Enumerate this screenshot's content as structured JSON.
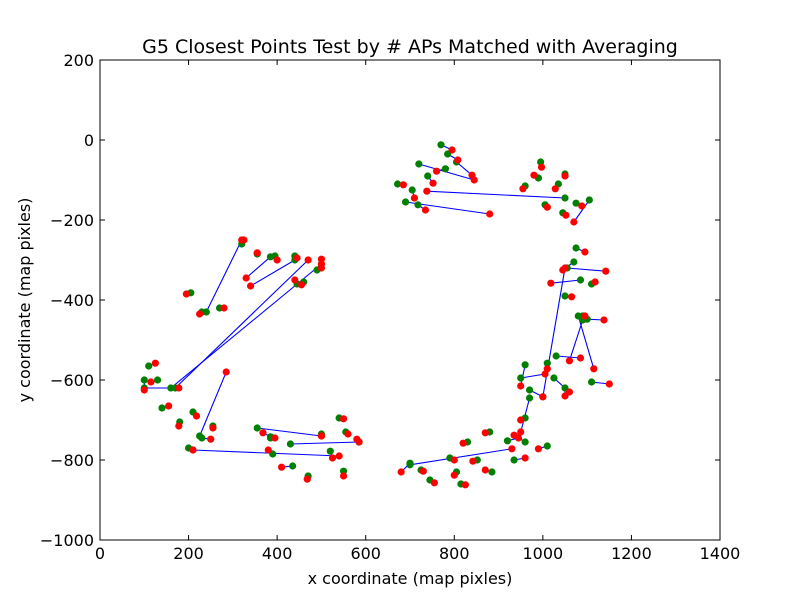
{
  "chart_data": {
    "type": "scatter",
    "title": "G5 Closest Points Test by # APs Matched with Averaging",
    "xlabel": "x coordinate (map pixles)",
    "ylabel": "y coordinate (map pixles)",
    "xlim": [
      0,
      1400
    ],
    "ylim": [
      -1000,
      200
    ],
    "xticks": [
      0,
      200,
      400,
      600,
      800,
      1000,
      1200,
      1400
    ],
    "yticks": [
      200,
      0,
      -200,
      -400,
      -600,
      -800,
      -1000
    ],
    "xtick_labels": [
      "0",
      "200",
      "400",
      "600",
      "800",
      "1000",
      "1200",
      "1400"
    ],
    "ytick_labels": [
      "200",
      "0",
      "−200",
      "−400",
      "−600",
      "−800",
      "−1000"
    ],
    "grid": false,
    "colors": {
      "actual": "#008000",
      "estimate": "#ff0000",
      "line": "#0000ff"
    },
    "pairs": [
      [
        770,
        -12,
        795,
        -25
      ],
      [
        785,
        -35,
        808,
        -50
      ],
      [
        740,
        -90,
        752,
        -108
      ],
      [
        780,
        -72,
        760,
        -78
      ],
      [
        720,
        -60,
        845,
        -100
      ],
      [
        705,
        -125,
        710,
        -145
      ],
      [
        718,
        -162,
        735,
        -175
      ],
      [
        672,
        -110,
        685,
        -112
      ],
      [
        805,
        -55,
        840,
        -88
      ],
      [
        995,
        -55,
        997,
        -68
      ],
      [
        990,
        -95,
        980,
        -88
      ],
      [
        1035,
        -110,
        1028,
        -122
      ],
      [
        1050,
        -85,
        1050,
        -90
      ],
      [
        960,
        -115,
        955,
        -122
      ],
      [
        1050,
        -145,
        738,
        -128
      ],
      [
        1005,
        -162,
        1010,
        -168
      ],
      [
        1045,
        -182,
        1052,
        -188
      ],
      [
        1075,
        -158,
        1088,
        -165
      ],
      [
        1105,
        -150,
        1070,
        -205
      ],
      [
        690,
        -155,
        880,
        -185
      ],
      [
        1075,
        -270,
        1095,
        -280
      ],
      [
        1070,
        -305,
        1045,
        -325
      ],
      [
        1055,
        -320,
        1142,
        -328
      ],
      [
        1050,
        -390,
        1065,
        -392
      ],
      [
        1110,
        -360,
        1118,
        -355
      ],
      [
        1085,
        -350,
        1018,
        -358
      ],
      [
        1090,
        -440,
        1095,
        -440
      ],
      [
        1100,
        -448,
        1138,
        -450
      ],
      [
        1090,
        -450,
        1060,
        -552
      ],
      [
        1080,
        -440,
        1115,
        -572
      ],
      [
        1030,
        -540,
        1085,
        -545
      ],
      [
        1010,
        -558,
        1010,
        -572
      ],
      [
        1025,
        -595,
        1060,
        -630
      ],
      [
        1050,
        -620,
        1050,
        -640
      ],
      [
        1110,
        -605,
        1150,
        -610
      ],
      [
        960,
        -562,
        950,
        -615
      ],
      [
        970,
        -625,
        1000,
        -642
      ],
      [
        1000,
        -642,
        1050,
        -320
      ],
      [
        950,
        -595,
        1005,
        -585
      ],
      [
        970,
        -645,
        950,
        -730
      ],
      [
        1010,
        -765,
        990,
        -772
      ],
      [
        960,
        -695,
        950,
        -700
      ],
      [
        960,
        -755,
        935,
        -738
      ],
      [
        935,
        -800,
        960,
        -795
      ],
      [
        920,
        -752,
        945,
        -745
      ],
      [
        880,
        -730,
        870,
        -732
      ],
      [
        852,
        -800,
        842,
        -803
      ],
      [
        830,
        -755,
        820,
        -758
      ],
      [
        885,
        -830,
        870,
        -825
      ],
      [
        790,
        -795,
        800,
        -800
      ],
      [
        805,
        -830,
        800,
        -838
      ],
      [
        815,
        -860,
        825,
        -862
      ],
      [
        745,
        -850,
        755,
        -857
      ],
      [
        725,
        -825,
        730,
        -828
      ],
      [
        700,
        -808,
        680,
        -830
      ],
      [
        700,
        -812,
        930,
        -772
      ],
      [
        550,
        -828,
        550,
        -840
      ],
      [
        585,
        -755,
        580,
        -748
      ],
      [
        555,
        -730,
        560,
        -735
      ],
      [
        540,
        -695,
        550,
        -697
      ],
      [
        520,
        -778,
        525,
        -795
      ],
      [
        500,
        -735,
        500,
        -740
      ],
      [
        470,
        -840,
        468,
        -848
      ],
      [
        435,
        -815,
        410,
        -818
      ],
      [
        390,
        -785,
        380,
        -775
      ],
      [
        385,
        -742,
        368,
        -732
      ],
      [
        355,
        -720,
        500,
        -740
      ],
      [
        385,
        -745,
        395,
        -745
      ],
      [
        430,
        -760,
        585,
        -755
      ],
      [
        270,
        -420,
        280,
        -420
      ],
      [
        230,
        -430,
        225,
        -435
      ],
      [
        205,
        -382,
        195,
        -385
      ],
      [
        240,
        -430,
        320,
        -250
      ],
      [
        320,
        -260,
        325,
        -250
      ],
      [
        355,
        -285,
        355,
        -282
      ],
      [
        395,
        -290,
        400,
        -300
      ],
      [
        385,
        -292,
        330,
        -345
      ],
      [
        440,
        -290,
        445,
        -295
      ],
      [
        445,
        -360,
        440,
        -350
      ],
      [
        460,
        -355,
        455,
        -362
      ],
      [
        490,
        -325,
        500,
        -320
      ],
      [
        500,
        -310,
        500,
        -298
      ],
      [
        440,
        -300,
        340,
        -365
      ],
      [
        170,
        -620,
        470,
        -300
      ],
      [
        160,
        -620,
        500,
        -310
      ],
      [
        180,
        -705,
        178,
        -715
      ],
      [
        210,
        -680,
        218,
        -690
      ],
      [
        130,
        -600,
        115,
        -605
      ],
      [
        110,
        -565,
        125,
        -558
      ],
      [
        140,
        -670,
        155,
        -665
      ],
      [
        230,
        -745,
        250,
        -748
      ],
      [
        255,
        -715,
        255,
        -720
      ],
      [
        200,
        -770,
        210,
        -775
      ],
      [
        210,
        -775,
        540,
        -790
      ],
      [
        100,
        -600,
        100,
        -625
      ],
      [
        100,
        -620,
        178,
        -620
      ],
      [
        225,
        -740,
        285,
        -580
      ]
    ]
  }
}
